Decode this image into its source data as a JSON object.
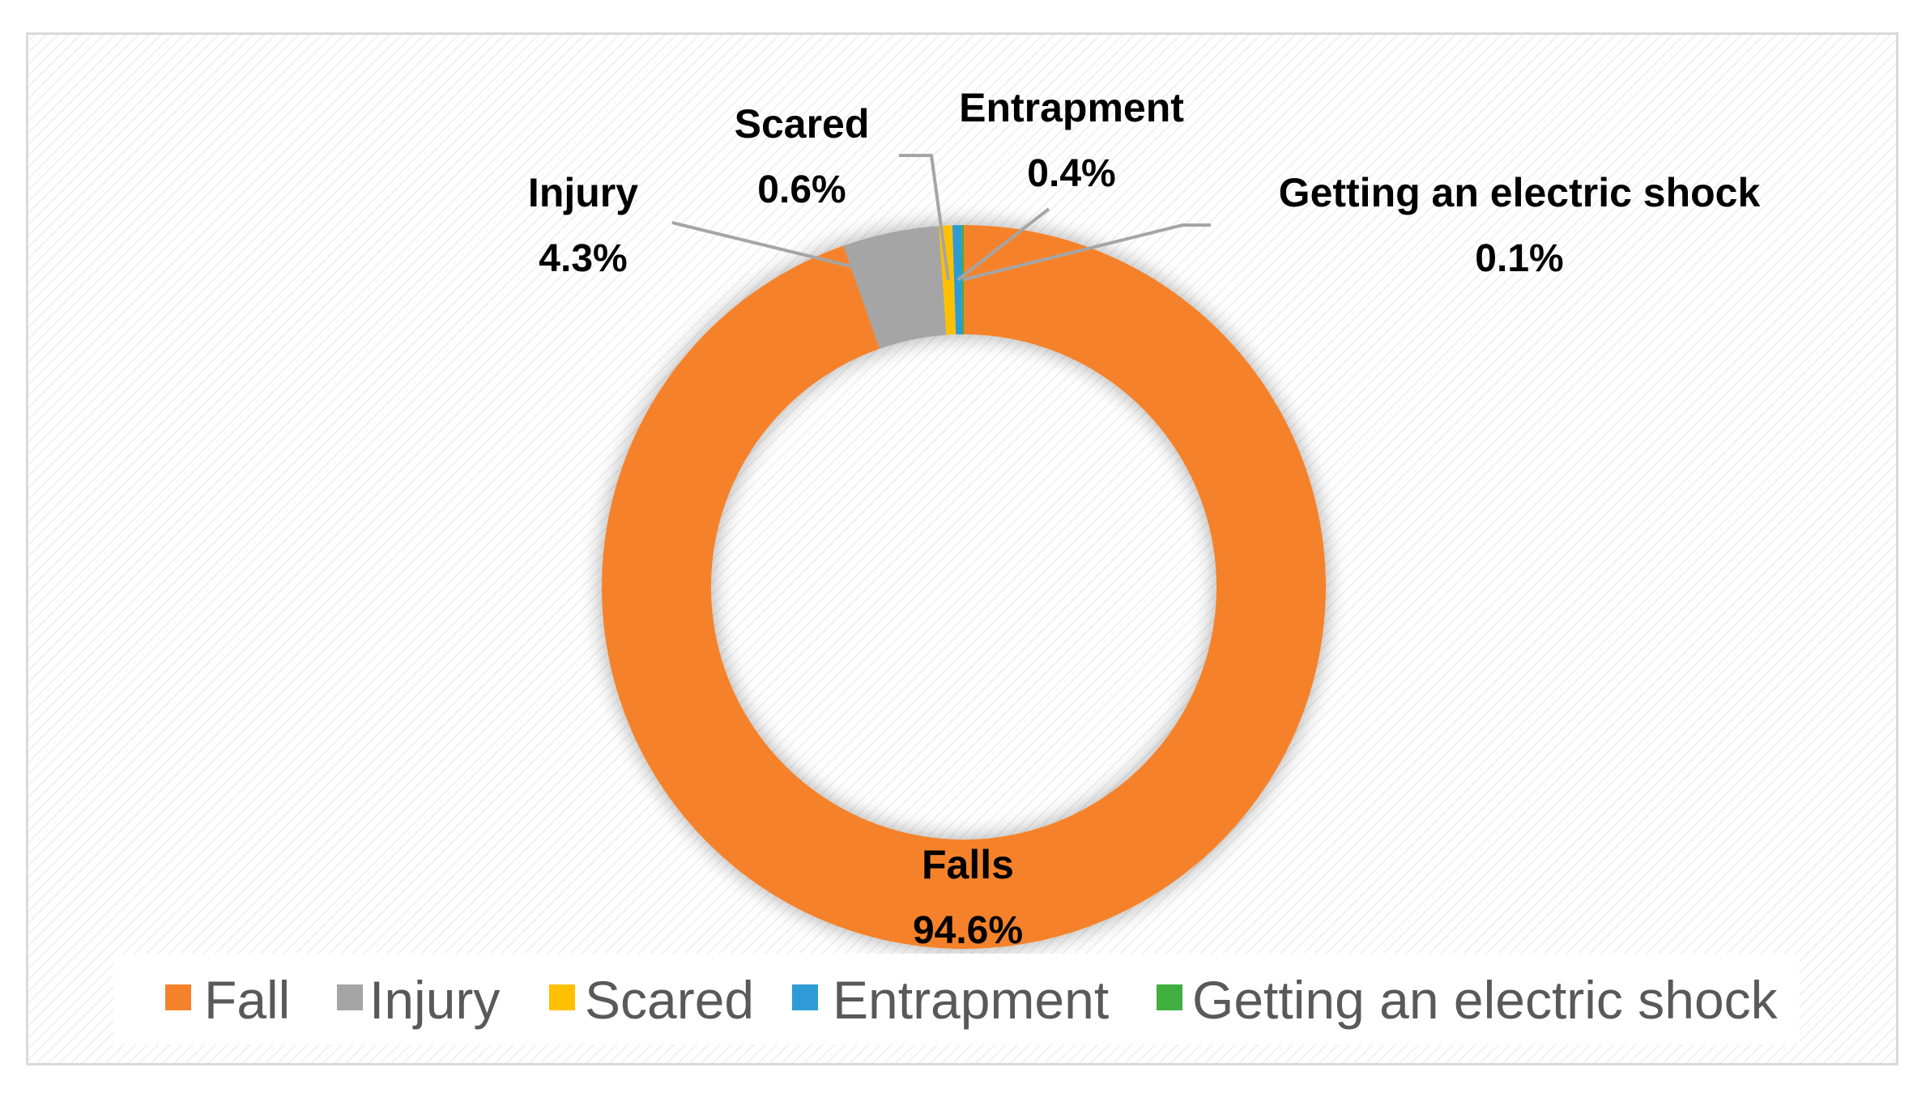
{
  "chart_data": {
    "type": "pie",
    "variant": "donut",
    "slices": [
      {
        "name": "Fall",
        "label": "Falls",
        "value": 94.6,
        "display": "94.6%",
        "color": "#F5822A"
      },
      {
        "name": "Injury",
        "label": "Injury",
        "value": 4.3,
        "display": "4.3%",
        "color": "#A5A5A5"
      },
      {
        "name": "Scared",
        "label": "Scared",
        "value": 0.6,
        "display": "0.6%",
        "color": "#FFC000"
      },
      {
        "name": "Entrapment",
        "label": "Entrapment",
        "value": 0.4,
        "display": "0.4%",
        "color": "#2E9BD6"
      },
      {
        "name": "Getting an electric shock",
        "label": "Getting an electric shock",
        "value": 0.1,
        "display": "0.1%",
        "color": "#3FAF3F"
      }
    ],
    "legend": {
      "placement": "bottom",
      "entries": [
        "Fall",
        "Injury",
        "Scared",
        "Entrapment",
        "Getting an electric shock"
      ]
    },
    "leader_line_color": "#A5A5A5"
  }
}
